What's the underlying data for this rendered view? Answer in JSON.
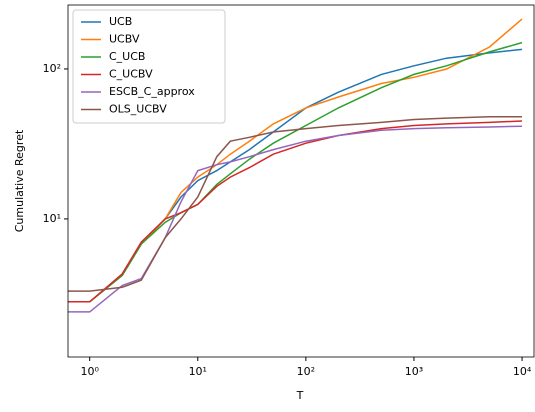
{
  "chart_data": {
    "type": "line",
    "xlabel": "T",
    "ylabel": "Cumulative Regret",
    "x": [
      0.63,
      1,
      2,
      3,
      5,
      7,
      10,
      15,
      20,
      30,
      50,
      100,
      200,
      500,
      1000,
      2000,
      5000,
      10000
    ],
    "series": [
      {
        "name": "UCB",
        "color": "#1f77b4",
        "values": [
          2.8,
          2.8,
          4.2,
          6.8,
          10,
          14,
          18,
          21,
          24,
          29,
          38,
          55,
          70,
          92,
          105,
          118,
          128,
          135
        ]
      },
      {
        "name": "UCBV",
        "color": "#ff7f0e",
        "values": [
          2.8,
          2.8,
          4.2,
          6.8,
          10,
          15,
          19,
          23,
          27,
          33,
          43,
          55,
          65,
          80,
          88,
          100,
          140,
          215
        ]
      },
      {
        "name": "C_UCB",
        "color": "#2ca02c",
        "values": [
          2.8,
          2.8,
          4.2,
          6.8,
          9.5,
          11,
          12.5,
          17,
          20,
          25,
          32,
          42,
          55,
          75,
          92,
          105,
          130,
          150
        ]
      },
      {
        "name": "C_UCBV",
        "color": "#d62728",
        "values": [
          2.8,
          2.8,
          4.3,
          7,
          10,
          11,
          12.5,
          16.5,
          19,
          22,
          27,
          32,
          36,
          40,
          42,
          43,
          44,
          45
        ]
      },
      {
        "name": "ESCB_C_approx",
        "color": "#9467bd",
        "values": [
          2.4,
          2.4,
          3.6,
          4.0,
          7.5,
          13,
          21,
          23,
          24,
          26,
          29,
          33,
          36,
          39,
          40,
          40.5,
          41,
          41.5
        ]
      },
      {
        "name": "OLS_UCBV",
        "color": "#8c564b",
        "values": [
          3.3,
          3.3,
          3.5,
          3.9,
          7.5,
          10,
          14,
          26,
          33,
          35,
          38,
          40,
          42,
          44,
          46,
          47,
          48,
          48
        ]
      }
    ],
    "xscale": "log",
    "yscale": "log",
    "xlim": [
      0.63,
      12900
    ],
    "ylim": [
      1.2,
      267
    ],
    "xticks": [
      {
        "value": 1,
        "label": "10⁰"
      },
      {
        "value": 10,
        "label": "10¹"
      },
      {
        "value": 100,
        "label": "10²"
      },
      {
        "value": 1000,
        "label": "10³"
      },
      {
        "value": 10000,
        "label": "10⁴"
      }
    ],
    "yticks": [
      {
        "value": 10,
        "label": "10¹"
      },
      {
        "value": 100,
        "label": "10²"
      }
    ],
    "legend": "upper left"
  }
}
